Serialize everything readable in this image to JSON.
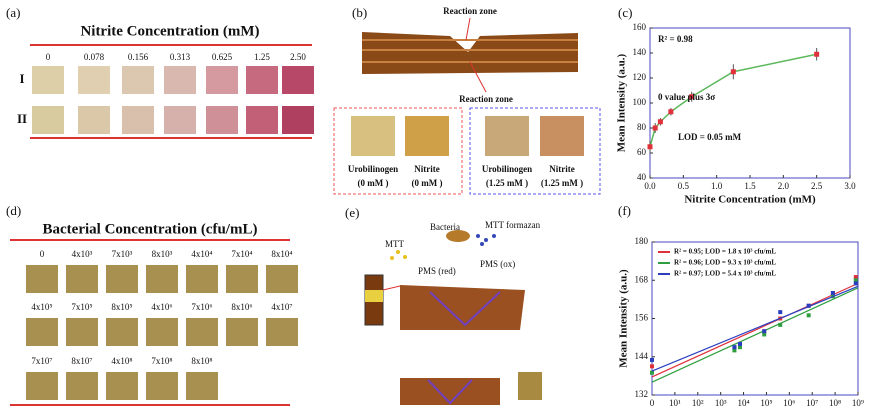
{
  "panels": {
    "a": {
      "label": "(a)",
      "title": "Nitrite Concentration (mM)",
      "columns": [
        "0",
        "0.078",
        "0.156",
        "0.313",
        "0.625",
        "1.25",
        "2.50"
      ],
      "rows": [
        "I",
        "II"
      ]
    },
    "b": {
      "label": "(b)",
      "top_annotation": "Reaction zone",
      "bottom_annotation": "Reaction zone",
      "samples": [
        {
          "name": "Urobilinogen",
          "conc": "(0 mM )"
        },
        {
          "name": "Nitrite",
          "conc": "(0 mM )"
        },
        {
          "name": "Urobilinogen",
          "conc": "(1.25 mM )"
        },
        {
          "name": "Nitrite",
          "conc": "(1.25 mM )"
        }
      ]
    },
    "c": {
      "label": "(c)"
    },
    "d": {
      "label": "(d)",
      "title": "Bacterial Concentration (cfu/mL)",
      "rows": [
        [
          "0",
          "4x10³",
          "7x10³",
          "8x10³",
          "4x10⁴",
          "7x10⁴",
          "8x10⁴"
        ],
        [
          "4x10⁵",
          "7x10⁵",
          "8x10⁵",
          "4x10⁶",
          "7x10⁶",
          "8x10⁶",
          "4x10⁷"
        ],
        [
          "7x10⁷",
          "8x10⁷",
          "4x10⁸",
          "7x10⁸",
          "8x10⁸"
        ]
      ]
    },
    "e": {
      "label": "(e)",
      "bacteria": "Bacteria",
      "formazan": "MTT formazan",
      "mtt": "MTT",
      "pms_red": "PMS (red)",
      "pms_ox": "PMS (ox)"
    },
    "f": {
      "label": "(f)"
    }
  },
  "chart_data": [
    {
      "type": "scatter",
      "x": [
        0,
        0.078,
        0.156,
        0.313,
        0.625,
        1.25,
        2.5
      ],
      "values": [
        65,
        80,
        85,
        93,
        105,
        125,
        139
      ],
      "errors": [
        5,
        4,
        3,
        3,
        4,
        6,
        5
      ],
      "color": "#e0303a",
      "line_color": "#5cb85c",
      "x_label": "Nitrite Concentration (mM)",
      "y_label": "Mean Intensity (a.u.)",
      "annotations": [
        "R² = 0.98",
        "0 value plus 3σ",
        "LOD = 0.05 mM"
      ],
      "xlim": [
        0,
        3
      ],
      "ylim": [
        40,
        160
      ],
      "xticks": [
        {
          "value": 0,
          "label": "0.0"
        },
        0.5,
        {
          "value": 1,
          "label": "1.0"
        },
        1.5,
        {
          "value": 2,
          "label": "2.0"
        },
        2.5,
        {
          "value": 3,
          "label": "3.0"
        }
      ],
      "yticks": [
        40,
        60,
        80,
        100,
        120,
        140,
        160
      ]
    },
    {
      "type": "scatter",
      "log_x": true,
      "x": [
        1,
        4000,
        7000,
        80000,
        400000,
        7000000,
        80000000,
        800000000
      ],
      "series": [
        {
          "name": "R² = 0.95; LOD = 1.8 x 10³ cfu/mL",
          "color": "#e0303a",
          "values": [
            141,
            147,
            148,
            152,
            156,
            160,
            164,
            169
          ]
        },
        {
          "name": "R² = 0.96; LOD = 9.3 x 10³ cfu/mL",
          "color": "#2e9e3e",
          "values": [
            139,
            146,
            147,
            151,
            154,
            157,
            163,
            168
          ]
        },
        {
          "name": "R² = 0.97; LOD = 5.4 x 10³ cfu/mL",
          "color": "#2a3fc0",
          "values": [
            143,
            147,
            148,
            152,
            158,
            160,
            164,
            167
          ]
        }
      ],
      "x_label": "Bacterial Concentration (cfu/mL)",
      "y_label": "Mean Intensity (a.u.)",
      "origin_label": "0",
      "xlim": [
        1,
        1000000000
      ],
      "ylim": [
        132,
        180
      ],
      "xticks": [
        {
          "value": 10,
          "label": "10¹"
        },
        {
          "value": 100,
          "label": "10²"
        },
        {
          "value": 1000,
          "label": "10³"
        },
        {
          "value": 10000,
          "label": "10⁴"
        },
        {
          "value": 100000,
          "label": "10⁵"
        },
        {
          "value": 1000000,
          "label": "10⁶"
        },
        {
          "value": 10000000,
          "label": "10⁷"
        },
        {
          "value": 100000000,
          "label": "10⁸"
        },
        {
          "value": 1000000000,
          "label": "10⁹"
        }
      ],
      "yticks": [
        132,
        144,
        156,
        168,
        180
      ]
    }
  ]
}
